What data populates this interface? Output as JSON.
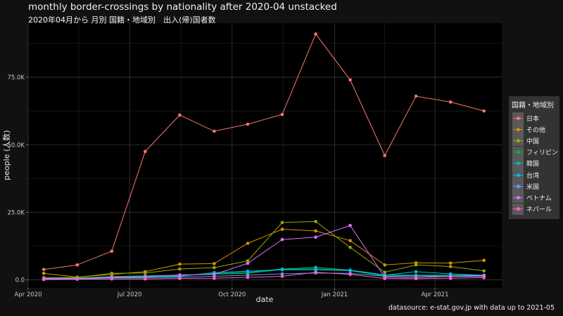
{
  "header": {
    "title": "monthly border-crossings by nationality after 2020-04 unstacked",
    "subtitle": "2020年04月から 月別 国籍・地域別　出入(帰)国者数"
  },
  "caption": "datasource: e-stat.gov.jp with data up to 2021-05",
  "colors": {
    "background": "#111111",
    "panel": "#000000",
    "legend_background": "#333333",
    "legend_key": "#595959",
    "grid_major": "#3a3a3a",
    "grid_minor": "#222222",
    "text": "#e6e6e6"
  },
  "chart_data": {
    "type": "line",
    "xlabel": "date",
    "ylabel": "people (人数)",
    "x": [
      "2020-04",
      "2020-05",
      "2020-06",
      "2020-07",
      "2020-08",
      "2020-09",
      "2020-10",
      "2020-11",
      "2020-12",
      "2021-01",
      "2021-02",
      "2021-03",
      "2021-04",
      "2021-05"
    ],
    "xlim": [
      "2020-04-01",
      "2021-05-31"
    ],
    "ylim": [
      -3000,
      95000
    ],
    "x_ticks": [
      {
        "date": "2020-04-01",
        "label": "Apr 2020"
      },
      {
        "date": "2020-07-01",
        "label": "Jul 2020"
      },
      {
        "date": "2020-10-01",
        "label": "Oct 2020"
      },
      {
        "date": "2021-01-01",
        "label": "Jan 2021"
      },
      {
        "date": "2021-04-01",
        "label": "Apr 2021"
      }
    ],
    "y_ticks": [
      {
        "value": 0,
        "label": "0.0"
      },
      {
        "value": 25000,
        "label": "25.0K"
      },
      {
        "value": 50000,
        "label": "50.0K"
      },
      {
        "value": 75000,
        "label": "75.0K"
      }
    ],
    "grid": true,
    "legend_title": "国籍・地域別",
    "legend_position": "right",
    "series": [
      {
        "name": "日本",
        "color": "#F8766D",
        "values": [
          3800,
          5500,
          10600,
          47500,
          61000,
          55000,
          57600,
          61200,
          91000,
          74000,
          46000,
          68000,
          65800,
          62500
        ]
      },
      {
        "name": "その他",
        "color": "#D39200",
        "values": [
          2400,
          1000,
          2000,
          3000,
          5800,
          6000,
          13500,
          18700,
          18100,
          14500,
          5500,
          6300,
          6200,
          7200
        ]
      },
      {
        "name": "中国",
        "color": "#93AA00",
        "values": [
          800,
          900,
          2400,
          2500,
          4000,
          4500,
          7000,
          21200,
          21600,
          12000,
          2800,
          5500,
          4900,
          3300
        ]
      },
      {
        "name": "フィリピン",
        "color": "#00BA38",
        "values": [
          400,
          700,
          1200,
          1500,
          1700,
          2100,
          2400,
          3800,
          4100,
          3400,
          1400,
          1600,
          1400,
          1500
        ]
      },
      {
        "name": "韓国",
        "color": "#00C19F",
        "values": [
          500,
          600,
          900,
          1100,
          1500,
          2300,
          2800,
          4000,
          4600,
          3600,
          1800,
          1700,
          1700,
          1600
        ]
      },
      {
        "name": "台湾",
        "color": "#00B9E3",
        "values": [
          300,
          300,
          700,
          700,
          1300,
          2700,
          3200,
          3700,
          3700,
          3400,
          1700,
          3000,
          2200,
          1700
        ]
      },
      {
        "name": "米国",
        "color": "#619CFF",
        "values": [
          600,
          500,
          700,
          800,
          1000,
          1300,
          1700,
          2200,
          2500,
          2400,
          1300,
          1400,
          1200,
          1200
        ]
      },
      {
        "name": "ベトナム",
        "color": "#DB72FB",
        "values": [
          300,
          400,
          1000,
          1200,
          1800,
          2000,
          6100,
          14900,
          15800,
          20100,
          1000,
          800,
          1300,
          1600
        ]
      },
      {
        "name": "ネパール",
        "color": "#FF61C3",
        "values": [
          100,
          200,
          300,
          300,
          500,
          600,
          900,
          1300,
          2800,
          2000,
          500,
          400,
          600,
          800
        ]
      }
    ]
  }
}
